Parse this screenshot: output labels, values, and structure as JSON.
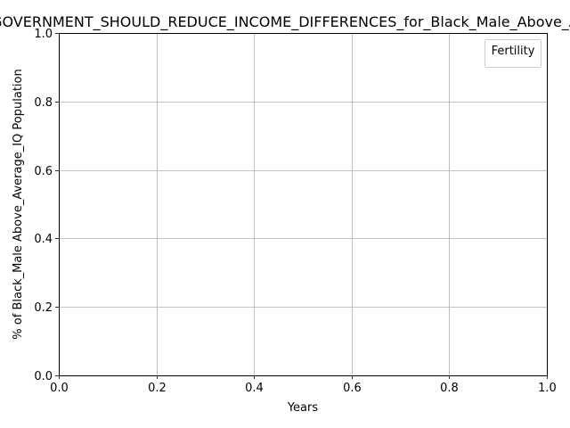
{
  "chart_data": {
    "type": "line",
    "title": "THE_GOVERNMENT_SHOULD_REDUCE_INCOME_DIFFERENCES_for_Black_Male_Above_Average_IQ",
    "xlabel": "Years",
    "ylabel": "% of Black_Male Above_Average_IQ Population",
    "xlim": [
      0.0,
      1.0
    ],
    "ylim": [
      0.0,
      1.0
    ],
    "x_ticks": [
      "0.0",
      "0.2",
      "0.4",
      "0.6",
      "0.8",
      "1.0"
    ],
    "y_ticks": [
      "0.0",
      "0.2",
      "0.4",
      "0.6",
      "0.8",
      "1.0"
    ],
    "grid": true,
    "legend": {
      "title": "Fertility",
      "placement": "top-right",
      "entries": []
    },
    "series": []
  }
}
